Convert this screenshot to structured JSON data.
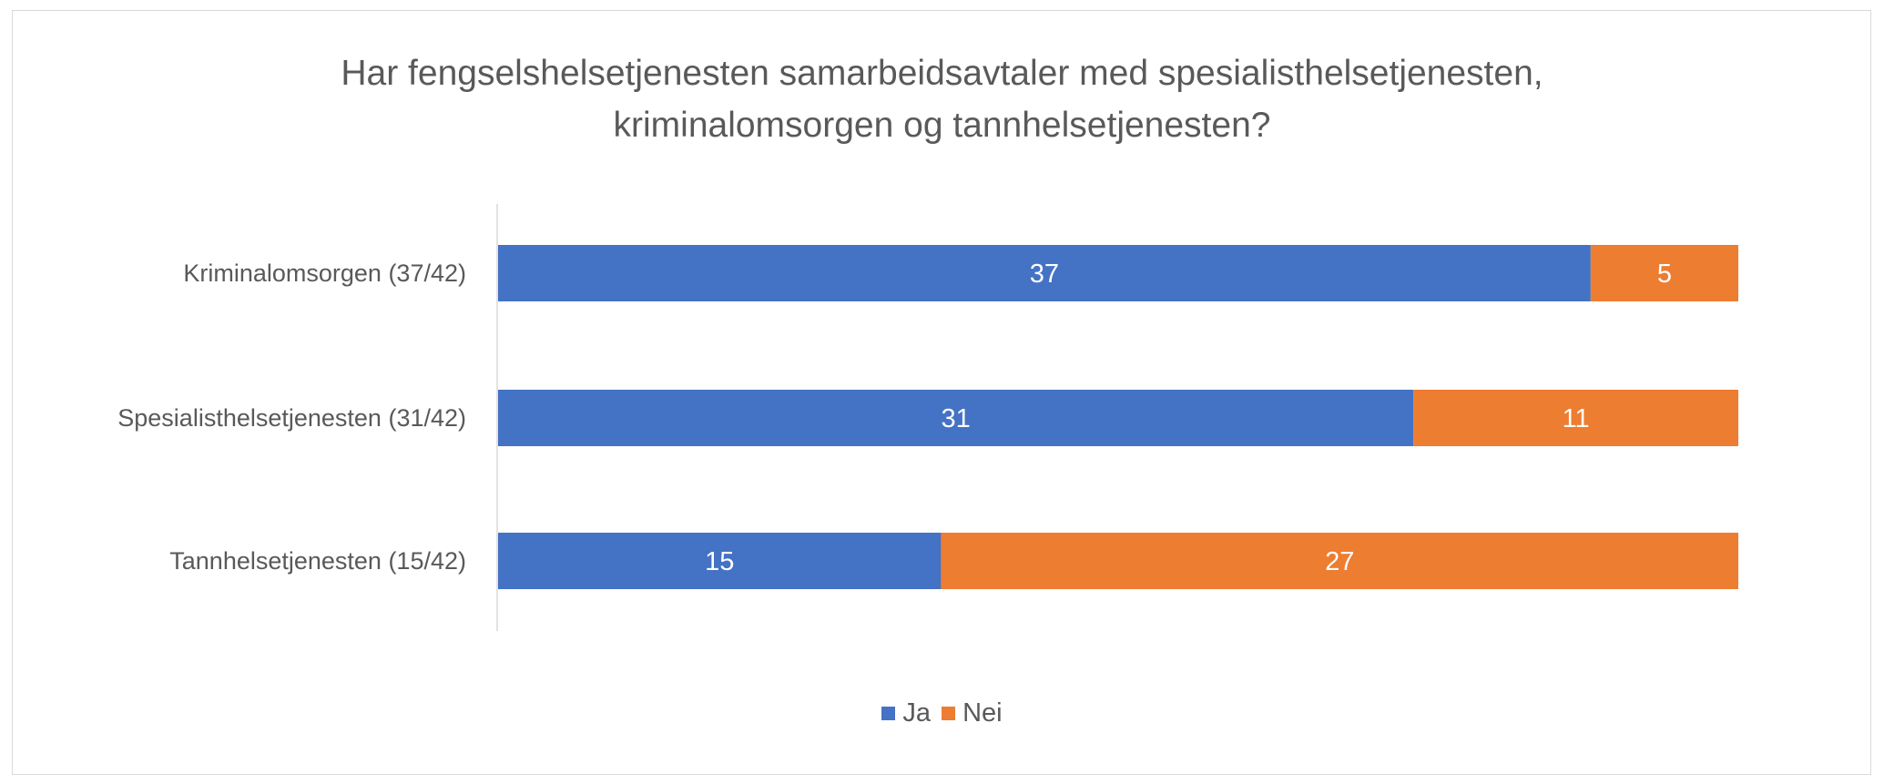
{
  "chart_data": {
    "type": "bar",
    "orientation": "horizontal",
    "stacked": true,
    "title": "Har fengselshelsetjenesten samarbeidsavtaler med spesialisthelsetjenesten, kriminalomsorgen og tannhelsetjenesten?",
    "title_lines": [
      "Har fengselshelsetjenesten samarbeidsavtaler med spesialisthelsetjenesten,",
      "kriminalomsorgen og tannhelsetjenesten?"
    ],
    "categories": [
      "Kriminalomsorgen (37/42)",
      "Spesialisthelsetjenesten (31/42)",
      "Tannhelsetjenesten (15/42)"
    ],
    "series": [
      {
        "name": "Ja",
        "color": "#4472C4",
        "values": [
          37,
          31,
          15
        ]
      },
      {
        "name": "Nei",
        "color": "#ED7D31",
        "values": [
          5,
          11,
          27
        ]
      }
    ],
    "xlim": [
      0,
      42
    ],
    "grid": false,
    "legend": "bottom",
    "data_labels": true
  }
}
